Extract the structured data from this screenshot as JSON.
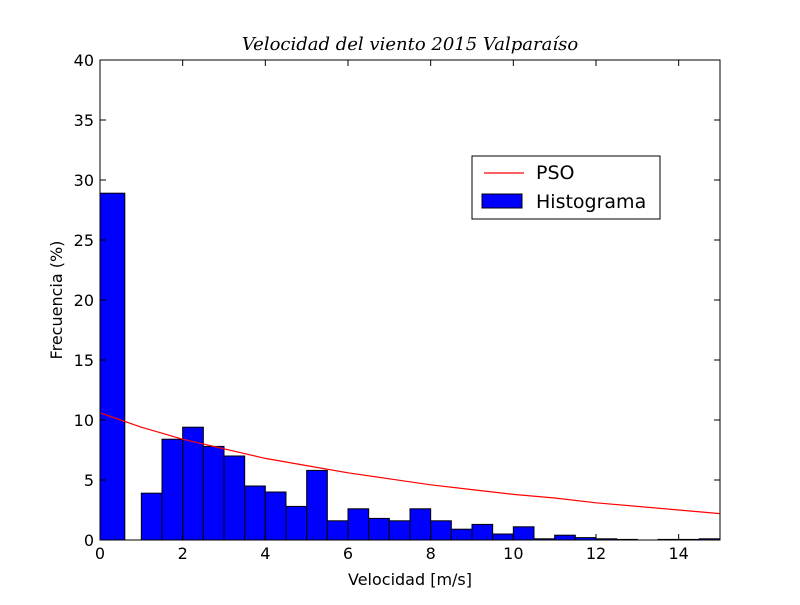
{
  "chart_data": {
    "type": "bar",
    "title": "Velocidad del viento 2015 Valparaíso",
    "xlabel": "Velocidad [m/s]",
    "ylabel": "Frecuencia (%)",
    "xlim": [
      0,
      15
    ],
    "ylim": [
      0,
      40
    ],
    "xticks": [
      0,
      2,
      4,
      6,
      8,
      10,
      12,
      14
    ],
    "yticks": [
      0,
      5,
      10,
      15,
      20,
      25,
      30,
      35,
      40
    ],
    "grid": false,
    "legend_position": "upper-right",
    "colors": {
      "bars": "#0000ff",
      "curve": "#ff0000",
      "axes": "#000000"
    },
    "series": [
      {
        "name": "Histograma",
        "type": "bar",
        "bin_width": 0.5,
        "bins": [
          {
            "x0": 0.0,
            "x1": 0.6,
            "value": 28.9
          },
          {
            "x0": 0.6,
            "x1": 1.0,
            "value": 0
          },
          {
            "x0": 1.0,
            "x1": 1.5,
            "value": 3.9
          },
          {
            "x0": 1.5,
            "x1": 2.0,
            "value": 8.4
          },
          {
            "x0": 2.0,
            "x1": 2.5,
            "value": 9.4
          },
          {
            "x0": 2.5,
            "x1": 3.0,
            "value": 7.8
          },
          {
            "x0": 3.0,
            "x1": 3.5,
            "value": 7.0
          },
          {
            "x0": 3.5,
            "x1": 4.0,
            "value": 4.5
          },
          {
            "x0": 4.0,
            "x1": 4.5,
            "value": 4.0
          },
          {
            "x0": 4.5,
            "x1": 5.0,
            "value": 2.8
          },
          {
            "x0": 5.0,
            "x1": 5.5,
            "value": 5.8
          },
          {
            "x0": 5.5,
            "x1": 6.0,
            "value": 1.6
          },
          {
            "x0": 6.0,
            "x1": 6.5,
            "value": 2.6
          },
          {
            "x0": 6.5,
            "x1": 7.0,
            "value": 1.8
          },
          {
            "x0": 7.0,
            "x1": 7.5,
            "value": 1.6
          },
          {
            "x0": 7.5,
            "x1": 8.0,
            "value": 2.6
          },
          {
            "x0": 8.0,
            "x1": 8.5,
            "value": 1.6
          },
          {
            "x0": 8.5,
            "x1": 9.0,
            "value": 0.9
          },
          {
            "x0": 9.0,
            "x1": 9.5,
            "value": 1.3
          },
          {
            "x0": 9.5,
            "x1": 10.0,
            "value": 0.5
          },
          {
            "x0": 10.0,
            "x1": 10.5,
            "value": 1.1
          },
          {
            "x0": 10.5,
            "x1": 11.0,
            "value": 0.1
          },
          {
            "x0": 11.0,
            "x1": 11.5,
            "value": 0.4
          },
          {
            "x0": 11.5,
            "x1": 12.0,
            "value": 0.2
          },
          {
            "x0": 12.0,
            "x1": 12.5,
            "value": 0.1
          },
          {
            "x0": 12.5,
            "x1": 13.0,
            "value": 0.05
          },
          {
            "x0": 13.0,
            "x1": 13.5,
            "value": 0
          },
          {
            "x0": 13.5,
            "x1": 14.0,
            "value": 0.05
          },
          {
            "x0": 14.0,
            "x1": 14.5,
            "value": 0.05
          },
          {
            "x0": 14.5,
            "x1": 15.0,
            "value": 0.1
          }
        ]
      },
      {
        "name": "PSO",
        "type": "line",
        "x": [
          0,
          1,
          2,
          3,
          4,
          5,
          6,
          7,
          8,
          9,
          10,
          11,
          12,
          13,
          14,
          15
        ],
        "y": [
          10.6,
          9.4,
          8.4,
          7.6,
          6.8,
          6.2,
          5.6,
          5.1,
          4.6,
          4.2,
          3.8,
          3.5,
          3.1,
          2.8,
          2.5,
          2.2
        ]
      }
    ],
    "legend": [
      {
        "label": "PSO",
        "kind": "line"
      },
      {
        "label": "Histograma",
        "kind": "patch"
      }
    ]
  }
}
